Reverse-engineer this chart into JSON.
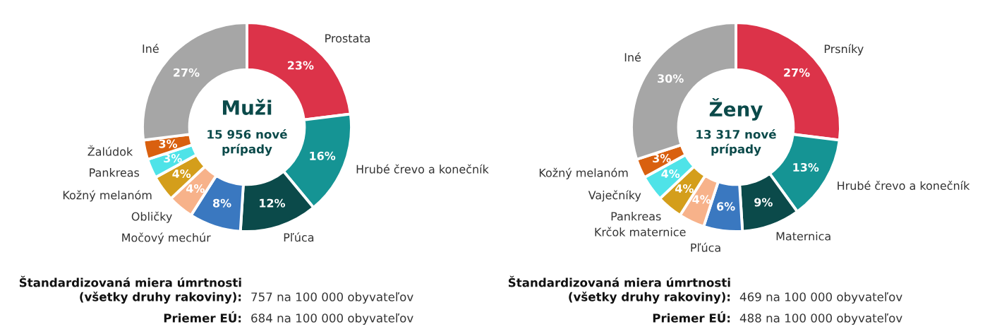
{
  "chart_data": [
    {
      "type": "donut",
      "title": "Muži",
      "subtitle": "15 956 nové\nprípady",
      "categories": [
        "Prostata",
        "Hrubé črevo a konečník",
        "Pľúca",
        "Močový mechúr",
        "Obličky",
        "Kožný melanóm",
        "Pankreas",
        "Žalúdok",
        "Iné"
      ],
      "values": [
        23,
        16,
        12,
        8,
        4,
        4,
        3,
        3,
        27
      ],
      "value_labels": [
        "23%",
        "16%",
        "12%",
        "8%",
        "4%",
        "4%",
        "3%",
        "3%",
        "27%"
      ],
      "colors": [
        "#dc3349",
        "#159494",
        "#0b4a4a",
        "#3a78c0",
        "#f7b28a",
        "#d49e1b",
        "#4fe3e8",
        "#d9600f",
        "#a6a6a6"
      ],
      "annotations": [
        "Štandardizovaná miera úmrtnosti\n(všetky druhy rakoviny):",
        "757 na 100 000 obyvateľov",
        "Priemer EÚ:",
        "684 na 100 000 obyvateľov"
      ]
    },
    {
      "type": "donut",
      "title": "Ženy",
      "subtitle": "13 317 nové\nprípady",
      "categories": [
        "Prsníky",
        "Hrubé črevo a konečník",
        "Maternica",
        "Pľúca",
        "Krčok maternice",
        "Pankreas",
        "Vaječníky",
        "Kožný melanóm",
        "Iné"
      ],
      "values": [
        27,
        13,
        9,
        6,
        4,
        4,
        4,
        3,
        30
      ],
      "value_labels": [
        "27%",
        "13%",
        "9%",
        "6%",
        "4%",
        "4%",
        "4%",
        "3%",
        "30%"
      ],
      "colors": [
        "#dc3349",
        "#159494",
        "#0b4a4a",
        "#3a78c0",
        "#f7b28a",
        "#d49e1b",
        "#4fe3e8",
        "#d9600f",
        "#a6a6a6"
      ],
      "annotations": [
        "Štandardizovaná miera úmrtnosti\n(všetky druhy rakoviny):",
        "469 na 100 000 obyvateľov",
        "Priemer EÚ:",
        "488 na 100 000 obyvateľov"
      ]
    }
  ]
}
